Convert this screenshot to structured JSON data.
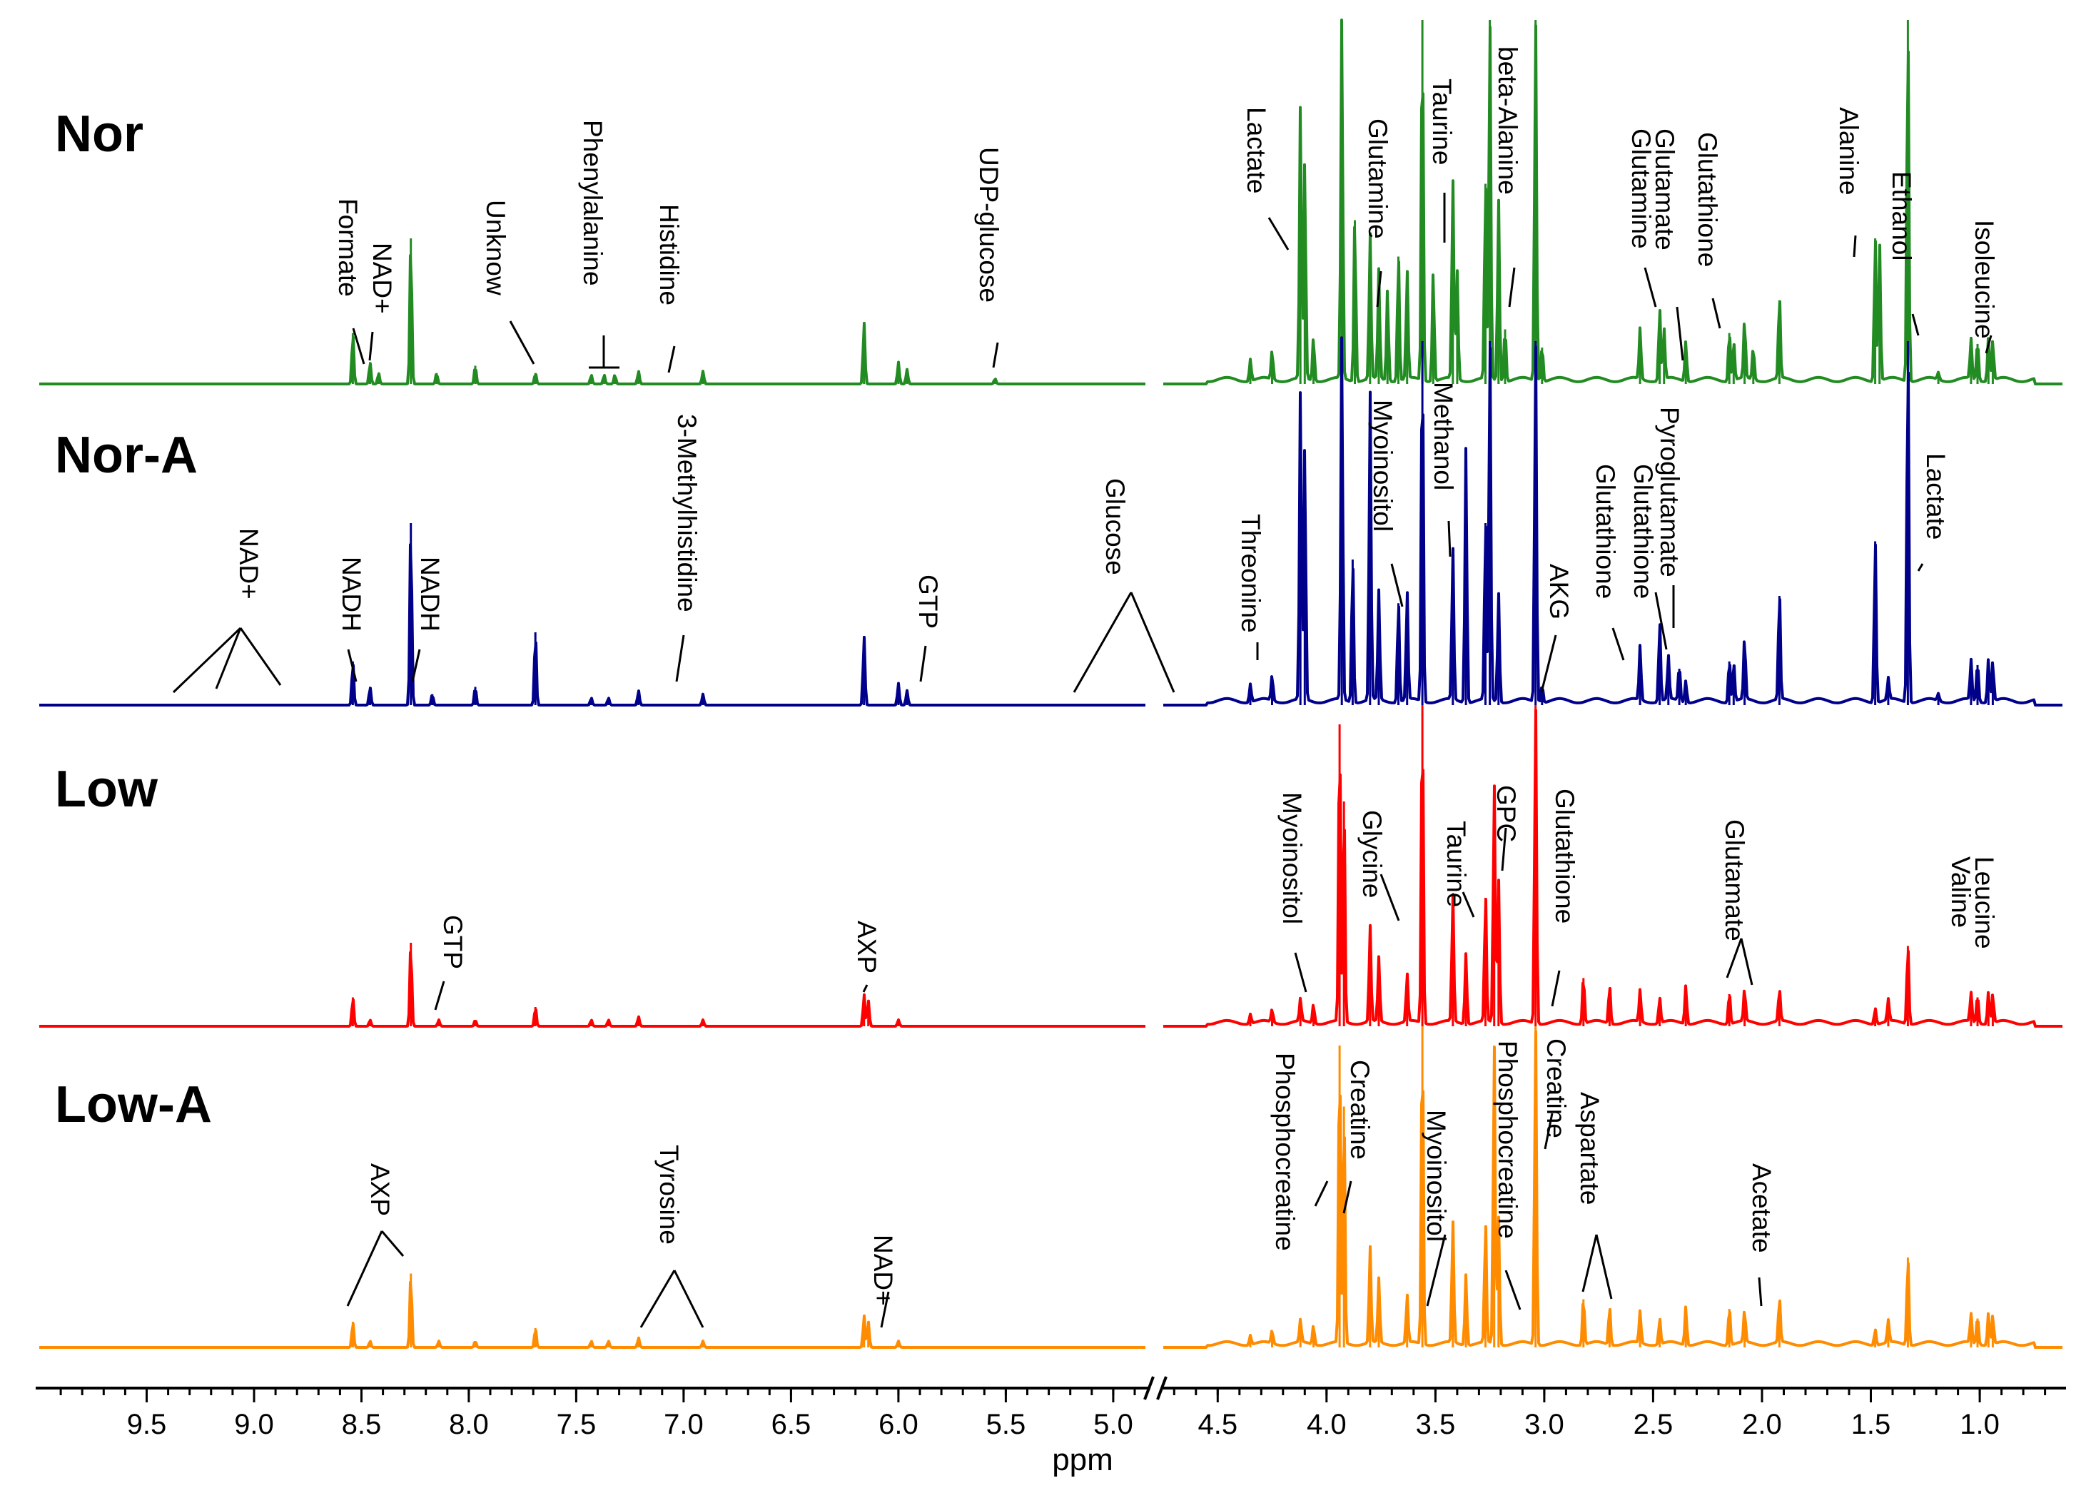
{
  "chart_data": {
    "type": "line",
    "title": "",
    "xlabel": "ppm",
    "ylabel": "",
    "x_axis": {
      "reversed": true,
      "broken_axis": true,
      "left_segment_range": [
        10.0,
        4.85
      ],
      "right_segment_range": [
        4.75,
        0.62
      ],
      "ticks": [
        9.5,
        9.0,
        8.5,
        8.0,
        7.5,
        7.0,
        6.5,
        6.0,
        5.5,
        5.0,
        4.5,
        4.0,
        3.5,
        3.0,
        2.5,
        2.0,
        1.5,
        1.0
      ],
      "tick_labels": [
        "9.5",
        "9.0",
        "8.5",
        "8.0",
        "7.5",
        "7.0",
        "6.5",
        "6.0",
        "5.5",
        "5.0",
        "4.5",
        "4.0",
        "3.5",
        "3.0",
        "2.5",
        "2.0",
        "1.5",
        "1.0"
      ]
    },
    "series": [
      {
        "name": "Nor",
        "color": "#228B22",
        "peaks": [
          {
            "ppm": 8.54,
            "h": 0.14
          },
          {
            "ppm": 8.46,
            "h": 0.06
          },
          {
            "ppm": 8.42,
            "h": 0.03
          },
          {
            "ppm": 8.27,
            "h": 0.4
          },
          {
            "ppm": 8.15,
            "h": 0.03
          },
          {
            "ppm": 7.97,
            "h": 0.05
          },
          {
            "ppm": 7.69,
            "h": 0.03
          },
          {
            "ppm": 7.43,
            "h": 0.025
          },
          {
            "ppm": 7.37,
            "h": 0.025
          },
          {
            "ppm": 7.32,
            "h": 0.025
          },
          {
            "ppm": 7.21,
            "h": 0.035
          },
          {
            "ppm": 6.91,
            "h": 0.035
          },
          {
            "ppm": 6.16,
            "h": 0.17
          },
          {
            "ppm": 6.0,
            "h": 0.06
          },
          {
            "ppm": 5.96,
            "h": 0.04
          },
          {
            "ppm": 5.55,
            "h": 0.015
          },
          {
            "ppm": 4.35,
            "h": 0.06
          },
          {
            "ppm": 4.25,
            "h": 0.08
          },
          {
            "ppm": 4.12,
            "h": 0.75
          },
          {
            "ppm": 4.1,
            "h": 0.6
          },
          {
            "ppm": 4.06,
            "h": 0.12
          },
          {
            "ppm": 3.93,
            "h": 1.0
          },
          {
            "ppm": 3.87,
            "h": 0.45
          },
          {
            "ppm": 3.8,
            "h": 0.4
          },
          {
            "ppm": 3.76,
            "h": 0.3
          },
          {
            "ppm": 3.72,
            "h": 0.25
          },
          {
            "ppm": 3.67,
            "h": 0.35
          },
          {
            "ppm": 3.63,
            "h": 0.3
          },
          {
            "ppm": 3.56,
            "h": 1.0
          },
          {
            "ppm": 3.51,
            "h": 0.3
          },
          {
            "ppm": 3.42,
            "h": 0.55
          },
          {
            "ppm": 3.4,
            "h": 0.3
          },
          {
            "ppm": 3.27,
            "h": 0.55
          },
          {
            "ppm": 3.25,
            "h": 1.0
          },
          {
            "ppm": 3.21,
            "h": 0.5
          },
          {
            "ppm": 3.18,
            "h": 0.15
          },
          {
            "ppm": 3.04,
            "h": 1.0
          },
          {
            "ppm": 3.01,
            "h": 0.1
          },
          {
            "ppm": 2.56,
            "h": 0.14
          },
          {
            "ppm": 2.47,
            "h": 0.2
          },
          {
            "ppm": 2.45,
            "h": 0.14
          },
          {
            "ppm": 2.35,
            "h": 0.11
          },
          {
            "ppm": 2.15,
            "h": 0.14
          },
          {
            "ppm": 2.13,
            "h": 0.11
          },
          {
            "ppm": 2.08,
            "h": 0.16
          },
          {
            "ppm": 2.04,
            "h": 0.09
          },
          {
            "ppm": 1.92,
            "h": 0.23
          },
          {
            "ppm": 1.48,
            "h": 0.4
          },
          {
            "ppm": 1.46,
            "h": 0.38
          },
          {
            "ppm": 1.33,
            "h": 1.0
          },
          {
            "ppm": 1.19,
            "h": 0.02
          },
          {
            "ppm": 1.04,
            "h": 0.11
          },
          {
            "ppm": 1.01,
            "h": 0.11
          },
          {
            "ppm": 0.96,
            "h": 0.12
          },
          {
            "ppm": 0.94,
            "h": 0.11
          }
        ]
      },
      {
        "name": "Nor-A",
        "color": "#00008B",
        "peaks": [
          {
            "ppm": 8.54,
            "h": 0.12
          },
          {
            "ppm": 8.46,
            "h": 0.05
          },
          {
            "ppm": 8.27,
            "h": 0.5
          },
          {
            "ppm": 8.17,
            "h": 0.03
          },
          {
            "ppm": 7.97,
            "h": 0.05
          },
          {
            "ppm": 7.69,
            "h": 0.2
          },
          {
            "ppm": 7.43,
            "h": 0.02
          },
          {
            "ppm": 7.35,
            "h": 0.02
          },
          {
            "ppm": 7.21,
            "h": 0.04
          },
          {
            "ppm": 6.91,
            "h": 0.03
          },
          {
            "ppm": 6.16,
            "h": 0.19
          },
          {
            "ppm": 6.0,
            "h": 0.06
          },
          {
            "ppm": 5.96,
            "h": 0.04
          },
          {
            "ppm": 4.35,
            "h": 0.05
          },
          {
            "ppm": 4.25,
            "h": 0.07
          },
          {
            "ppm": 4.12,
            "h": 0.85
          },
          {
            "ppm": 4.1,
            "h": 0.7
          },
          {
            "ppm": 3.93,
            "h": 1.0
          },
          {
            "ppm": 3.88,
            "h": 0.4
          },
          {
            "ppm": 3.8,
            "h": 0.85
          },
          {
            "ppm": 3.76,
            "h": 0.3
          },
          {
            "ppm": 3.67,
            "h": 0.28
          },
          {
            "ppm": 3.63,
            "h": 0.3
          },
          {
            "ppm": 3.56,
            "h": 1.0
          },
          {
            "ppm": 3.42,
            "h": 0.42
          },
          {
            "ppm": 3.36,
            "h": 0.7
          },
          {
            "ppm": 3.27,
            "h": 0.5
          },
          {
            "ppm": 3.25,
            "h": 1.0
          },
          {
            "ppm": 3.21,
            "h": 0.3
          },
          {
            "ppm": 3.04,
            "h": 1.0
          },
          {
            "ppm": 3.01,
            "h": 0.05
          },
          {
            "ppm": 2.56,
            "h": 0.15
          },
          {
            "ppm": 2.47,
            "h": 0.22
          },
          {
            "ppm": 2.43,
            "h": 0.12
          },
          {
            "ppm": 2.38,
            "h": 0.1
          },
          {
            "ppm": 2.35,
            "h": 0.06
          },
          {
            "ppm": 2.15,
            "h": 0.12
          },
          {
            "ppm": 2.13,
            "h": 0.11
          },
          {
            "ppm": 2.08,
            "h": 0.17
          },
          {
            "ppm": 1.92,
            "h": 0.3
          },
          {
            "ppm": 1.48,
            "h": 0.45
          },
          {
            "ppm": 1.42,
            "h": 0.06
          },
          {
            "ppm": 1.33,
            "h": 1.0
          },
          {
            "ppm": 1.19,
            "h": 0.02
          },
          {
            "ppm": 1.04,
            "h": 0.11
          },
          {
            "ppm": 1.01,
            "h": 0.11
          },
          {
            "ppm": 0.96,
            "h": 0.12
          },
          {
            "ppm": 0.94,
            "h": 0.11
          }
        ]
      },
      {
        "name": "Low",
        "color": "#FF0000",
        "peaks": [
          {
            "ppm": 8.54,
            "h": 0.09
          },
          {
            "ppm": 8.46,
            "h": 0.02
          },
          {
            "ppm": 8.27,
            "h": 0.26
          },
          {
            "ppm": 8.14,
            "h": 0.02
          },
          {
            "ppm": 7.97,
            "h": 0.02
          },
          {
            "ppm": 7.69,
            "h": 0.06
          },
          {
            "ppm": 7.43,
            "h": 0.02
          },
          {
            "ppm": 7.35,
            "h": 0.02
          },
          {
            "ppm": 7.21,
            "h": 0.03
          },
          {
            "ppm": 6.91,
            "h": 0.02
          },
          {
            "ppm": 6.16,
            "h": 0.1
          },
          {
            "ppm": 6.14,
            "h": 0.08
          },
          {
            "ppm": 6.0,
            "h": 0.02
          },
          {
            "ppm": 4.35,
            "h": 0.03
          },
          {
            "ppm": 4.25,
            "h": 0.04
          },
          {
            "ppm": 4.12,
            "h": 0.07
          },
          {
            "ppm": 4.06,
            "h": 0.06
          },
          {
            "ppm": 3.94,
            "h": 0.94
          },
          {
            "ppm": 3.92,
            "h": 0.7
          },
          {
            "ppm": 3.8,
            "h": 0.3
          },
          {
            "ppm": 3.76,
            "h": 0.2
          },
          {
            "ppm": 3.63,
            "h": 0.15
          },
          {
            "ppm": 3.56,
            "h": 1.0
          },
          {
            "ppm": 3.42,
            "h": 0.4
          },
          {
            "ppm": 3.36,
            "h": 0.22
          },
          {
            "ppm": 3.27,
            "h": 0.4
          },
          {
            "ppm": 3.23,
            "h": 0.75
          },
          {
            "ppm": 3.21,
            "h": 0.45
          },
          {
            "ppm": 3.04,
            "h": 1.0
          },
          {
            "ppm": 2.82,
            "h": 0.15
          },
          {
            "ppm": 2.7,
            "h": 0.12
          },
          {
            "ppm": 2.56,
            "h": 0.1
          },
          {
            "ppm": 2.47,
            "h": 0.08
          },
          {
            "ppm": 2.35,
            "h": 0.12
          },
          {
            "ppm": 2.15,
            "h": 0.1
          },
          {
            "ppm": 2.08,
            "h": 0.1
          },
          {
            "ppm": 1.92,
            "h": 0.1
          },
          {
            "ppm": 1.48,
            "h": 0.05
          },
          {
            "ppm": 1.42,
            "h": 0.07
          },
          {
            "ppm": 1.33,
            "h": 0.25
          },
          {
            "ppm": 1.04,
            "h": 0.09
          },
          {
            "ppm": 1.01,
            "h": 0.09
          },
          {
            "ppm": 0.96,
            "h": 0.1
          },
          {
            "ppm": 0.94,
            "h": 0.09
          }
        ]
      },
      {
        "name": "Low-A",
        "color": "#FF8C00",
        "peaks": [
          {
            "ppm": 8.54,
            "h": 0.08
          },
          {
            "ppm": 8.46,
            "h": 0.02
          },
          {
            "ppm": 8.27,
            "h": 0.23
          },
          {
            "ppm": 8.14,
            "h": 0.02
          },
          {
            "ppm": 7.97,
            "h": 0.02
          },
          {
            "ppm": 7.69,
            "h": 0.06
          },
          {
            "ppm": 7.43,
            "h": 0.02
          },
          {
            "ppm": 7.35,
            "h": 0.02
          },
          {
            "ppm": 7.21,
            "h": 0.03
          },
          {
            "ppm": 6.91,
            "h": 0.02
          },
          {
            "ppm": 6.16,
            "h": 0.1
          },
          {
            "ppm": 6.14,
            "h": 0.08
          },
          {
            "ppm": 6.0,
            "h": 0.02
          },
          {
            "ppm": 4.35,
            "h": 0.03
          },
          {
            "ppm": 4.25,
            "h": 0.04
          },
          {
            "ppm": 4.12,
            "h": 0.07
          },
          {
            "ppm": 4.06,
            "h": 0.06
          },
          {
            "ppm": 3.94,
            "h": 0.94
          },
          {
            "ppm": 3.92,
            "h": 0.75
          },
          {
            "ppm": 3.8,
            "h": 0.3
          },
          {
            "ppm": 3.76,
            "h": 0.2
          },
          {
            "ppm": 3.63,
            "h": 0.15
          },
          {
            "ppm": 3.56,
            "h": 1.0
          },
          {
            "ppm": 3.42,
            "h": 0.38
          },
          {
            "ppm": 3.36,
            "h": 0.22
          },
          {
            "ppm": 3.27,
            "h": 0.38
          },
          {
            "ppm": 3.23,
            "h": 0.94
          },
          {
            "ppm": 3.21,
            "h": 0.4
          },
          {
            "ppm": 3.04,
            "h": 1.0
          },
          {
            "ppm": 2.82,
            "h": 0.15
          },
          {
            "ppm": 2.7,
            "h": 0.12
          },
          {
            "ppm": 2.56,
            "h": 0.1
          },
          {
            "ppm": 2.47,
            "h": 0.08
          },
          {
            "ppm": 2.35,
            "h": 0.12
          },
          {
            "ppm": 2.15,
            "h": 0.12
          },
          {
            "ppm": 2.08,
            "h": 0.1
          },
          {
            "ppm": 1.92,
            "h": 0.14
          },
          {
            "ppm": 1.48,
            "h": 0.05
          },
          {
            "ppm": 1.42,
            "h": 0.07
          },
          {
            "ppm": 1.33,
            "h": 0.28
          },
          {
            "ppm": 1.04,
            "h": 0.09
          },
          {
            "ppm": 1.01,
            "h": 0.09
          },
          {
            "ppm": 0.96,
            "h": 0.1
          },
          {
            "ppm": 0.94,
            "h": 0.09
          }
        ]
      }
    ],
    "annotations": {
      "Nor": [
        "Formate",
        "NAD+",
        "Unknow",
        "Phenylalanine",
        "Histidine",
        "UDP-glucose",
        "Lactate",
        "Glutamine",
        "Taurine",
        "beta-Alanine",
        "Glutamine",
        "Glutamate",
        "Glutathione",
        "Alanine",
        "Ethanol",
        "Isoleucine"
      ],
      "Nor-A": [
        "NAD+",
        "NADH",
        "NADH",
        "3-Methylhistidine",
        "GTP",
        "Glucose",
        "Threonine",
        "Myoinositol",
        "Methanol",
        "AKG",
        "Glutathione",
        "Glutathione",
        "Pyroglutamate",
        "Lactate"
      ],
      "Low": [
        "GTP",
        "AXP",
        "Myoinositol",
        "Glycine",
        "Taurine",
        "GPC",
        "Glutathione",
        "Glutamate",
        "Valine",
        "Leucine"
      ],
      "Low-A": [
        "AXP",
        "Tyrosine",
        "NAD+",
        "Phosphocreatine",
        "Creatine",
        "Myoinositol",
        "Phosphocreatine",
        "Creatine",
        "Aspartate",
        "Acetate"
      ]
    }
  }
}
